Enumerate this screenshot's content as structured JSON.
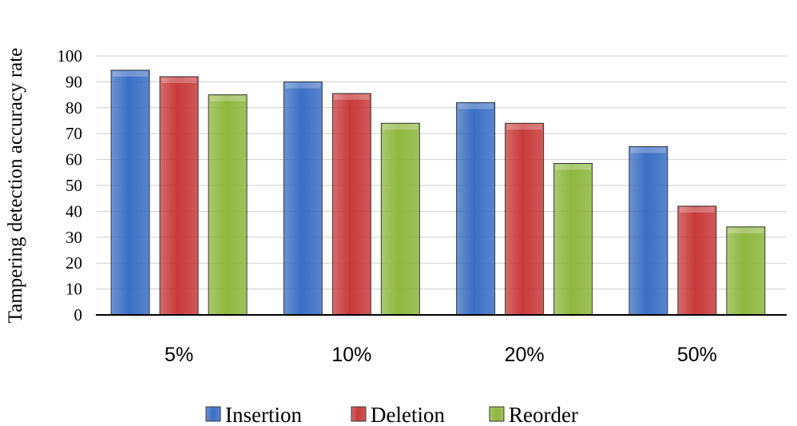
{
  "chart_data": {
    "type": "bar",
    "title": "",
    "xlabel": "",
    "ylabel": "Tampering detection accuracy rate",
    "categories": [
      "5%",
      "10%",
      "20%",
      "50%"
    ],
    "series": [
      {
        "name": "Insertion",
        "values": [
          94.5,
          90,
          82,
          65
        ],
        "color": "#3b6fc4"
      },
      {
        "name": "Deletion",
        "values": [
          92,
          85.5,
          74,
          42
        ],
        "color": "#c83a3a"
      },
      {
        "name": "Reorder",
        "values": [
          85,
          74,
          58.5,
          34
        ],
        "color": "#8fb63e"
      }
    ],
    "ylim": [
      0,
      100
    ],
    "yticks": [
      0,
      10,
      20,
      30,
      40,
      50,
      60,
      70,
      80,
      90,
      100
    ],
    "grid": true,
    "legend_position": "bottom"
  }
}
